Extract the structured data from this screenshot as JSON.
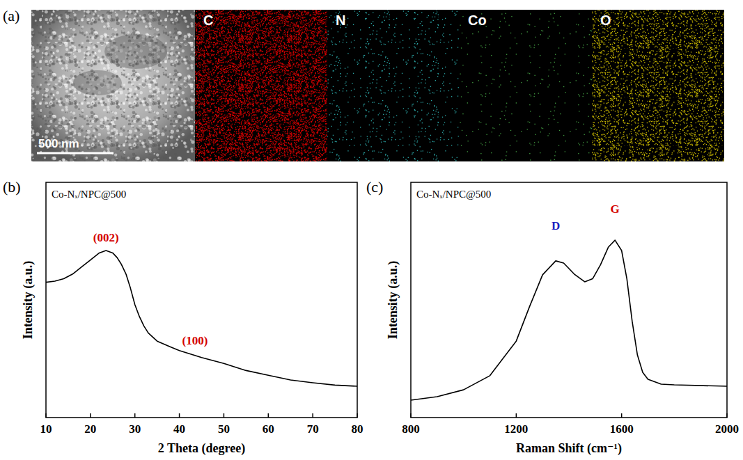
{
  "mapping": {
    "label": "(a)",
    "scale_bar": "500 nm",
    "maps": [
      {
        "element": "C",
        "color": "#d40000"
      },
      {
        "element": "N",
        "color": "#2aa6a6"
      },
      {
        "element": "Co",
        "color": "#3f9a3f"
      },
      {
        "element": "O",
        "color": "#c9b800"
      }
    ]
  },
  "chart_data": [
    {
      "type": "line",
      "label": "(b)",
      "title": "Co-Nₓ/NPC@500",
      "x_label": "2 Theta (degree)",
      "y_label": "Intensity (a.u.)",
      "x": [
        10,
        12,
        14,
        16,
        18,
        20,
        22,
        23.5,
        25,
        26,
        27,
        28,
        29,
        30,
        31,
        32,
        33,
        35,
        38,
        40,
        45,
        50,
        55,
        60,
        65,
        70,
        75,
        80
      ],
      "values": [
        57.5,
        58,
        59,
        61,
        64,
        67,
        70,
        71,
        70,
        68,
        65,
        61,
        55,
        48,
        43,
        39,
        36,
        32.5,
        30,
        28.5,
        25.5,
        23,
        20,
        18,
        16,
        14.8,
        13.8,
        13.3
      ],
      "color": "#000000",
      "xlim": [
        10,
        80
      ],
      "xticks": [
        10,
        20,
        30,
        40,
        50,
        60,
        70,
        80
      ],
      "ylim": [
        0,
        100
      ],
      "tick_labels": "x",
      "annotations": [
        {
          "text": "(002)",
          "x": 23.5,
          "y": 75,
          "color": "#d40000"
        },
        {
          "text": "(100)",
          "x": 43.5,
          "y": 31,
          "color": "#d40000"
        }
      ]
    },
    {
      "type": "line",
      "label": "(c)",
      "title": "Co-Nₓ/NPC@500",
      "x_label": "Raman Shift (cm⁻¹)",
      "y_label": "Intensity (a.u.)",
      "x": [
        800,
        900,
        1000,
        1100,
        1200,
        1250,
        1300,
        1350,
        1380,
        1420,
        1460,
        1490,
        1520,
        1550,
        1575,
        1600,
        1620,
        1640,
        1660,
        1680,
        1700,
        1750,
        1800,
        2000
      ],
      "values": [
        7.4,
        8.9,
        11.8,
        17.8,
        32.5,
        47,
        60.7,
        66.6,
        65.7,
        61,
        57.7,
        59,
        65,
        72.5,
        75.4,
        71,
        59,
        41,
        26.6,
        19.2,
        16.3,
        14.2,
        13.9,
        13.3
      ],
      "color": "#000000",
      "xlim": [
        800,
        2000
      ],
      "xticks": [
        800,
        1200,
        1600,
        2000
      ],
      "ylim": [
        0,
        100
      ],
      "tick_labels": "x",
      "annotations": [
        {
          "text": "D",
          "x": 1350,
          "y": 80,
          "color": "#1f1fbf"
        },
        {
          "text": "G",
          "x": 1575,
          "y": 87,
          "color": "#d40000"
        }
      ]
    }
  ]
}
